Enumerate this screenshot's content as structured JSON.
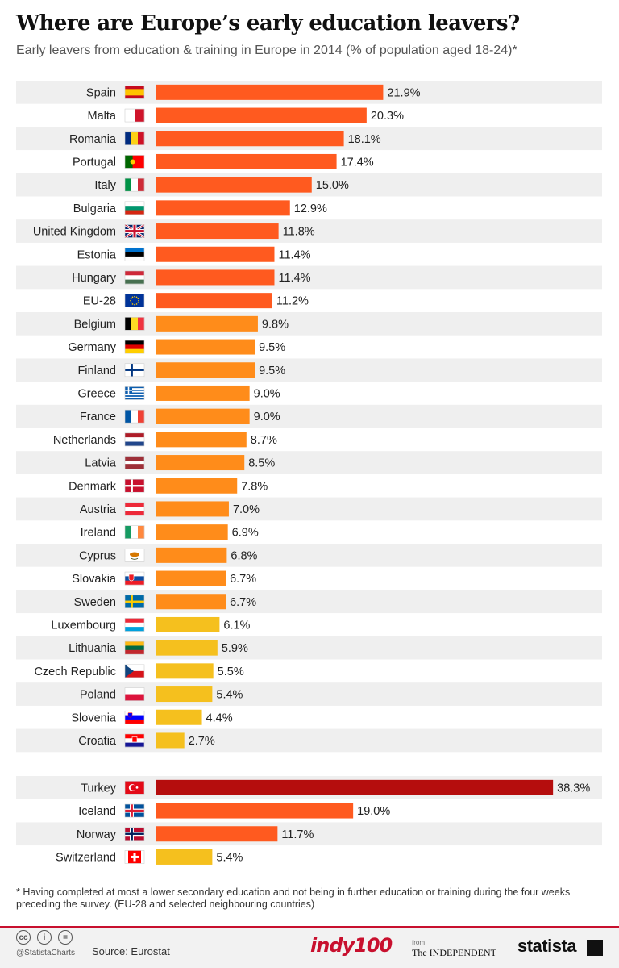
{
  "header": {
    "title": "Where are Europe’s early education leavers?",
    "subtitle": "Early leavers from education & training in Europe in 2014 (% of population aged 18-24)*"
  },
  "chart_data": {
    "type": "bar",
    "orientation": "horizontal",
    "title": "Where are Europe’s early education leavers?",
    "subtitle": "Early leavers from education & training in Europe in 2014 (% of population aged 18-24)*",
    "value_suffix": "%",
    "xlim": [
      0,
      40
    ],
    "groups": [
      {
        "name": "EU-28",
        "categories": [
          "Spain",
          "Malta",
          "Romania",
          "Portugal",
          "Italy",
          "Bulgaria",
          "United Kingdom",
          "Estonia",
          "Hungary",
          "EU-28",
          "Belgium",
          "Germany",
          "Finland",
          "Greece",
          "France",
          "Netherlands",
          "Latvia",
          "Denmark",
          "Austria",
          "Ireland",
          "Cyprus",
          "Slovakia",
          "Sweden",
          "Luxembourg",
          "Lithuania",
          "Czech Republic",
          "Poland",
          "Slovenia",
          "Croatia"
        ],
        "values": [
          21.9,
          20.3,
          18.1,
          17.4,
          15.0,
          12.9,
          11.8,
          11.4,
          11.4,
          11.2,
          9.8,
          9.5,
          9.5,
          9.0,
          9.0,
          8.7,
          8.5,
          7.8,
          7.0,
          6.9,
          6.8,
          6.7,
          6.7,
          6.1,
          5.9,
          5.5,
          5.4,
          4.4,
          2.7
        ],
        "labels": [
          "21.9%",
          "20.3%",
          "18.1%",
          "17.4%",
          "15.0%",
          "12.9%",
          "11.8%",
          "11.4%",
          "11.4%",
          "11.2%",
          "9.8%",
          "9.5%",
          "9.5%",
          "9.0%",
          "9.0%",
          "8.7%",
          "8.5%",
          "7.8%",
          "7.0%",
          "6.9%",
          "6.8%",
          "6.7%",
          "6.7%",
          "6.1%",
          "5.9%",
          "5.5%",
          "5.4%",
          "4.4%",
          "2.7%"
        ],
        "flags": [
          "spain-flag",
          "malta-flag",
          "romania-flag",
          "portugal-flag",
          "italy-flag",
          "bulgaria-flag",
          "united-kingdom-flag",
          "estonia-flag",
          "hungary-flag",
          "eu-flag",
          "belgium-flag",
          "germany-flag",
          "finland-flag",
          "greece-flag",
          "france-flag",
          "netherlands-flag",
          "latvia-flag",
          "denmark-flag",
          "austria-flag",
          "ireland-flag",
          "cyprus-flag",
          "slovakia-flag",
          "sweden-flag",
          "luxembourg-flag",
          "lithuania-flag",
          "czech-republic-flag",
          "poland-flag",
          "slovenia-flag",
          "croatia-flag"
        ]
      },
      {
        "name": "Neighbouring countries",
        "categories": [
          "Turkey",
          "Iceland",
          "Norway",
          "Switzerland"
        ],
        "values": [
          38.3,
          19.0,
          11.7,
          5.4
        ],
        "labels": [
          "38.3%",
          "19.0%",
          "11.7%",
          "5.4%"
        ],
        "flags": [
          "turkey-flag",
          "iceland-flag",
          "norway-flag",
          "switzerland-flag"
        ]
      }
    ],
    "colors": {
      "highlight": "#b50d0d",
      "high": "#ff5a1f",
      "mid": "#ff8c1a",
      "low": "#f5c01e",
      "row_shade": "#efefef"
    }
  },
  "footnote": "* Having completed at most a lower secondary education and not being in further education or training during the four weeks preceding the survey. (EU-28 and selected neighbouring countries)",
  "footer": {
    "cc_icons": [
      "cc",
      "i",
      "="
    ],
    "handle": "@StatistaCharts",
    "source": "Source: Eurostat",
    "brand_indy": "indy100",
    "brand_from": "from",
    "brand_independent": "The INDEPENDENT",
    "brand_statista": "statista"
  }
}
